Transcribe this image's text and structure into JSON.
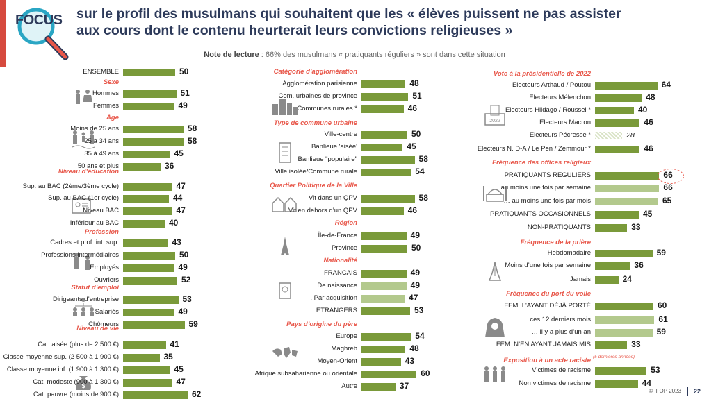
{
  "header": {
    "logo_text": "FOCUS",
    "title_line1": "sur le profil des musulmans qui souhaitent que les « élèves puissent ne pas assister",
    "title_line2": "aux cours dont le contenu heurterait leurs convictions religieuses »",
    "note_label": "Note de lecture",
    "note_text": " : 66% des musulmans « pratiquants réguliers » sont dans cette situation"
  },
  "footer": {
    "copyright": "© IFOP 2023",
    "page": "22"
  },
  "colors": {
    "bar": "#7a9a3a",
    "bar_light": "#b3c98d",
    "section": "#e8574a",
    "title": "#2d3a5a"
  },
  "chart_data": [
    {
      "type": "bar",
      "column": "left",
      "groups": [
        {
          "title": "",
          "items": [
            {
              "label": "ENSEMBLE",
              "value": 50
            }
          ]
        },
        {
          "title": "Sexe",
          "icon": "people-icon",
          "items": [
            {
              "label": "Hommes",
              "value": 51
            },
            {
              "label": "Femmes",
              "value": 49
            }
          ]
        },
        {
          "title": "Age",
          "icon": "family-icon",
          "items": [
            {
              "label": "Moins de 25 ans",
              "value": 58
            },
            {
              "label": "25 à 34 ans",
              "value": 58
            },
            {
              "label": "35 à 49 ans",
              "value": 45
            },
            {
              "label": "50 ans et plus",
              "value": 36
            }
          ]
        },
        {
          "title": "Niveau d’éducation",
          "icon": "diploma-icon",
          "items": [
            {
              "label": "Sup. au BAC (2ème/3ème cycle)",
              "value": 47
            },
            {
              "label": "Sup. au BAC (1er cycle)",
              "value": 44
            },
            {
              "label": "Niveau BAC",
              "value": 47
            },
            {
              "label": "Inférieur au BAC",
              "value": 40
            }
          ]
        },
        {
          "title": "Profession",
          "icon": "workers-icon",
          "items": [
            {
              "label": "Cadres et prof. int. sup.",
              "value": 43
            },
            {
              "label": "Professions intermédiaires",
              "value": 50
            },
            {
              "label": "Employés",
              "value": 49
            },
            {
              "label": "Ouvriers",
              "value": 52
            }
          ]
        },
        {
          "title": "Statut d’emploi",
          "icon": "org-chart-icon",
          "items": [
            {
              "label": "Dirigeants d’entreprise",
              "value": 53
            },
            {
              "label": "Salariés",
              "value": 49
            },
            {
              "label": "Chômeurs",
              "value": 59
            }
          ]
        },
        {
          "title": "Niveau de vie",
          "icon": "money-bag-icon",
          "items": [
            {
              "label": "Cat. aisée (plus de 2 500 €)",
              "value": 41
            },
            {
              "label": "Classe moyenne sup. (2 500 à 1 900 €)",
              "value": 35
            },
            {
              "label": "Classe moyenne inf. (1 900 à 1 300 €)",
              "value": 45
            },
            {
              "label": "Cat. modeste (900 à 1 300 €)",
              "value": 47
            },
            {
              "label": "Cat. pauvre (moins de 900 €)",
              "value": 62
            }
          ]
        }
      ]
    },
    {
      "type": "bar",
      "column": "middle",
      "groups": [
        {
          "title": "Catégorie d’agglomération",
          "icon": "city-icon",
          "items": [
            {
              "label": "Agglomération parisienne",
              "value": 48
            },
            {
              "label": "Com. urbaines de province",
              "value": 51
            },
            {
              "label": "Communes rurales *",
              "value": 46
            }
          ]
        },
        {
          "title": "Type de commune urbaine",
          "icon": "building-icon",
          "items": [
            {
              "label": "Ville-centre",
              "value": 50
            },
            {
              "label": "Banlieue 'aisée'",
              "value": 45
            },
            {
              "label": "Banlieue \"populaire\"",
              "value": 58
            },
            {
              "label": "Ville isolée/Commune rurale",
              "value": 54
            }
          ]
        },
        {
          "title": "Quartier Politique de la Ville",
          "icon": "houses-icon",
          "items": [
            {
              "label": "Vit dans un QPV",
              "value": 58
            },
            {
              "label": "Vit en dehors d’un QPV",
              "value": 46
            }
          ]
        },
        {
          "title": "Région",
          "icon": "eiffel-tower-icon",
          "items": [
            {
              "label": "Île-de-France",
              "value": 49
            },
            {
              "label": "Province",
              "value": 50
            }
          ]
        },
        {
          "title": "Nationalité",
          "icon": "passport-icon",
          "items": [
            {
              "label": "FRANCAIS",
              "value": 49
            },
            {
              "label": ". De naissance",
              "value": 49,
              "light": true
            },
            {
              "label": ". Par acquisition",
              "value": 47,
              "light": true
            },
            {
              "label": "ETRANGERS",
              "value": 53
            }
          ]
        },
        {
          "title": "Pays d’origine du père",
          "icon": "world-map-icon",
          "items": [
            {
              "label": "Europe",
              "value": 54
            },
            {
              "label": "Maghreb",
              "value": 48
            },
            {
              "label": "Moyen-Orient",
              "value": 43
            },
            {
              "label": "Afrique subsaharienne ou orientale",
              "value": 60
            },
            {
              "label": "Autre",
              "value": 37
            }
          ]
        }
      ]
    },
    {
      "type": "bar",
      "column": "right",
      "groups": [
        {
          "title": "Vote à la présidentielle de 2022",
          "icon": "ballot-box-icon",
          "icon_text": "2022",
          "items": [
            {
              "label": "Electeurs Arthaud / Poutou",
              "value": 64
            },
            {
              "label": "Electeurs Mélenchon",
              "value": 48
            },
            {
              "label": "Electeurs Hildago / Roussel  *",
              "value": 40
            },
            {
              "label": "Electeurs Macron",
              "value": 46
            },
            {
              "label": "Electeurs Pécresse *",
              "value": 28,
              "low_base": true
            },
            {
              "label": "Electeurs N. D-A / Le Pen / Zemmour *",
              "value": 46
            }
          ]
        },
        {
          "title": "Fréquence des offices religieux",
          "icon": "mosque-icon",
          "items": [
            {
              "label": "PRATIQUANTS REGULIERS",
              "value": 66,
              "highlight": true
            },
            {
              "label": "… au moins une fois par semaine",
              "value": 66,
              "light": true
            },
            {
              "label": "… au moins une fois par mois",
              "value": 65,
              "light": true
            },
            {
              "label": "PRATIQUANTS OCCASIONNELS",
              "value": 45
            },
            {
              "label": "NON-PRATIQUANTS",
              "value": 33
            }
          ]
        },
        {
          "title": "Fréquence de la prière",
          "icon": "praying-hands-icon",
          "items": [
            {
              "label": "Hebdomadaire",
              "value": 59
            },
            {
              "label": "Moins d’une fois par semaine",
              "value": 36
            },
            {
              "label": "Jamais",
              "value": 24
            }
          ]
        },
        {
          "title": "Fréquence du port du voile",
          "icon": "veiled-woman-icon",
          "items": [
            {
              "label": "FEM. L'AYANT DÉJÀ PORTÉ",
              "value": 60
            },
            {
              "label": "… ces 12 derniers mois",
              "value": 61,
              "light": true
            },
            {
              "label": "… il y a plus d’un an",
              "value": 59,
              "light": true
            },
            {
              "label": "FEM. N’EN AYANT JAMAIS MIS",
              "value": 33
            }
          ]
        },
        {
          "title": "Exposition à un acte raciste",
          "note": "(5 dernières années)",
          "icon": "group-icon",
          "items": [
            {
              "label": "Victimes de racisme",
              "value": 53
            },
            {
              "label": "Non victimes de racisme",
              "value": 44
            }
          ]
        }
      ]
    }
  ]
}
